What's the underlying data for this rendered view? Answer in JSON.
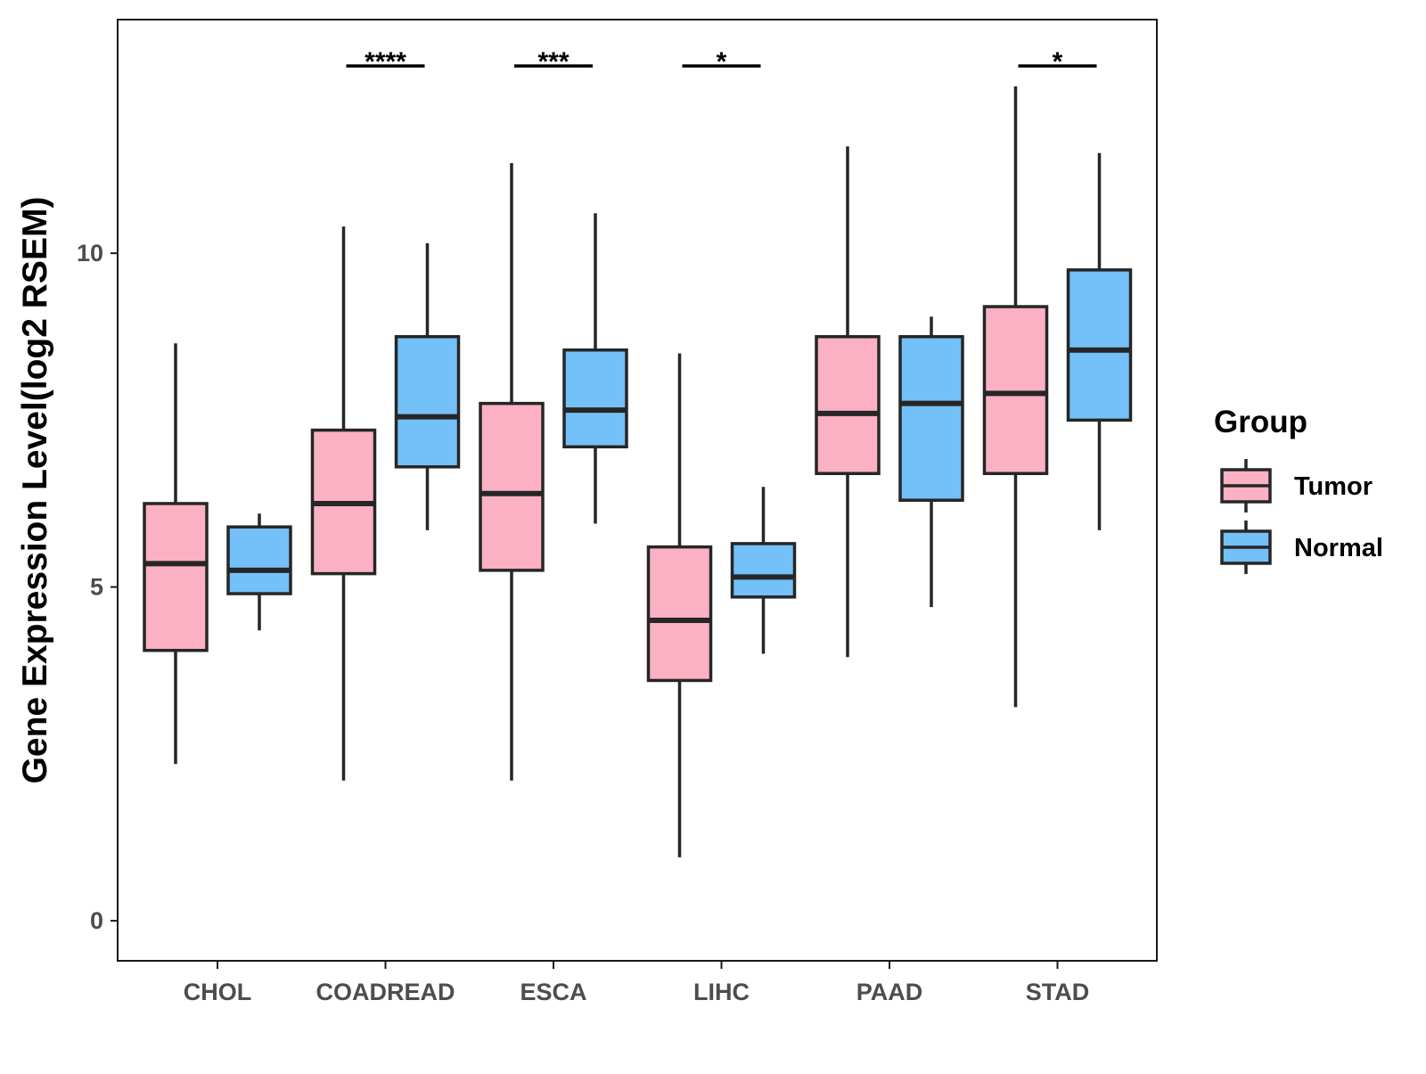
{
  "chart_data": {
    "type": "boxplot",
    "title": "",
    "xlabel": "",
    "ylabel": "Gene Expression Level(log2 RSEM)",
    "ylim": [
      -0.6,
      13.5
    ],
    "yticks": [
      0,
      5,
      10
    ],
    "grid": false,
    "categories": [
      "CHOL",
      "COADREAD",
      "ESCA",
      "LIHC",
      "PAAD",
      "STAD"
    ],
    "legend": {
      "title": "Group",
      "position": "right",
      "items": [
        {
          "label": "Tumor",
          "color": "#FBB1C3"
        },
        {
          "label": "Normal",
          "color": "#74C0F8"
        }
      ]
    },
    "series": [
      {
        "name": "Tumor",
        "color": "#FBB1C3",
        "boxes": [
          {
            "min": 2.35,
            "q1": 4.05,
            "median": 5.35,
            "q3": 6.25,
            "max": 8.65
          },
          {
            "min": 2.1,
            "q1": 5.2,
            "median": 6.25,
            "q3": 7.35,
            "max": 10.4
          },
          {
            "min": 2.1,
            "q1": 5.25,
            "median": 6.4,
            "q3": 7.75,
            "max": 11.35
          },
          {
            "min": 0.95,
            "q1": 3.6,
            "median": 4.5,
            "q3": 5.6,
            "max": 8.5
          },
          {
            "min": 3.95,
            "q1": 6.7,
            "median": 7.6,
            "q3": 8.75,
            "max": 11.6
          },
          {
            "min": 3.2,
            "q1": 6.7,
            "median": 7.9,
            "q3": 9.2,
            "max": 12.5
          }
        ]
      },
      {
        "name": "Normal",
        "color": "#74C0F8",
        "boxes": [
          {
            "min": 4.35,
            "q1": 4.9,
            "median": 5.25,
            "q3": 5.9,
            "max": 6.1
          },
          {
            "min": 5.85,
            "q1": 6.8,
            "median": 7.55,
            "q3": 8.75,
            "max": 10.15
          },
          {
            "min": 5.95,
            "q1": 7.1,
            "median": 7.65,
            "q3": 8.55,
            "max": 10.6
          },
          {
            "min": 4.0,
            "q1": 4.85,
            "median": 5.15,
            "q3": 5.65,
            "max": 6.5
          },
          {
            "min": 4.7,
            "q1": 6.3,
            "median": 7.75,
            "q3": 8.75,
            "max": 9.05
          },
          {
            "min": 5.85,
            "q1": 7.5,
            "median": 8.55,
            "q3": 9.75,
            "max": 11.5
          }
        ]
      }
    ],
    "significance": [
      {
        "category": "COADREAD",
        "label": "****"
      },
      {
        "category": "ESCA",
        "label": "***"
      },
      {
        "category": "LIHC",
        "label": "*"
      },
      {
        "category": "STAD",
        "label": "*"
      }
    ]
  }
}
